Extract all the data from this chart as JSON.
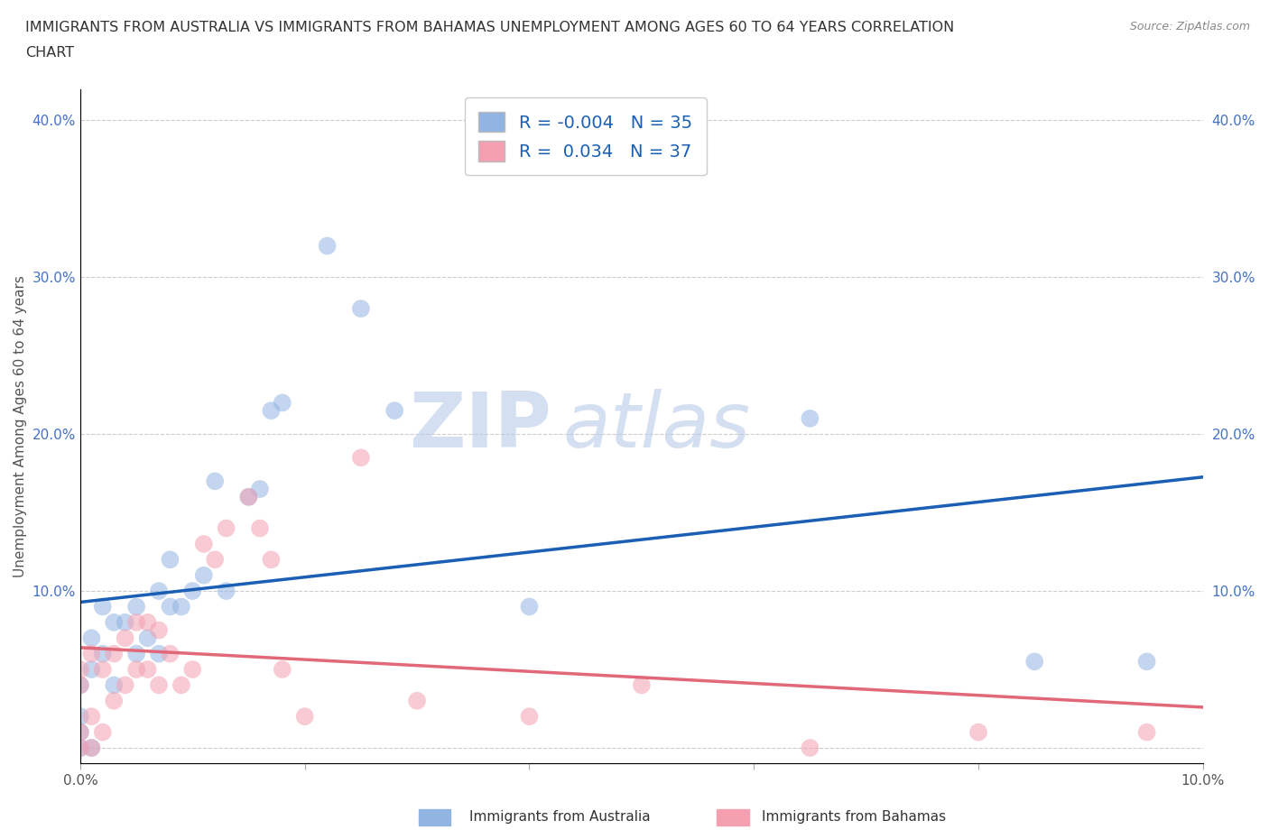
{
  "title_line1": "IMMIGRANTS FROM AUSTRALIA VS IMMIGRANTS FROM BAHAMAS UNEMPLOYMENT AMONG AGES 60 TO 64 YEARS CORRELATION",
  "title_line2": "CHART",
  "source": "Source: ZipAtlas.com",
  "ylabel": "Unemployment Among Ages 60 to 64 years",
  "xlim": [
    0.0,
    0.1
  ],
  "ylim": [
    -0.01,
    0.42
  ],
  "xticks": [
    0.0,
    0.02,
    0.04,
    0.06,
    0.08,
    0.1
  ],
  "xticklabels": [
    "0.0%",
    "",
    "",
    "",
    "",
    "10.0%"
  ],
  "yticks": [
    0.0,
    0.1,
    0.2,
    0.3,
    0.4
  ],
  "yticklabels": [
    "",
    "10.0%",
    "20.0%",
    "30.0%",
    "40.0%"
  ],
  "R_australia": -0.004,
  "N_australia": 35,
  "R_bahamas": 0.034,
  "N_bahamas": 37,
  "australia_color": "#92b4e3",
  "bahamas_color": "#f4a0b0",
  "trendline_australia_color": "#1a5fb4",
  "trendline_bahamas_color": "#e06878",
  "watermark_zip": "ZIP",
  "watermark_atlas": "atlas",
  "watermark_color": "#c8d8f0",
  "legend_label_color": "#1a5fb4",
  "australia_x": [
    0.0,
    0.0,
    0.0,
    0.0,
    0.001,
    0.001,
    0.001,
    0.002,
    0.002,
    0.003,
    0.003,
    0.004,
    0.005,
    0.005,
    0.006,
    0.007,
    0.007,
    0.008,
    0.008,
    0.009,
    0.01,
    0.011,
    0.012,
    0.013,
    0.015,
    0.016,
    0.017,
    0.018,
    0.022,
    0.025,
    0.028,
    0.04,
    0.065,
    0.085,
    0.095
  ],
  "australia_y": [
    0.0,
    0.01,
    0.02,
    0.04,
    0.0,
    0.05,
    0.07,
    0.06,
    0.09,
    0.04,
    0.08,
    0.08,
    0.06,
    0.09,
    0.07,
    0.06,
    0.1,
    0.09,
    0.12,
    0.09,
    0.1,
    0.11,
    0.17,
    0.1,
    0.16,
    0.165,
    0.215,
    0.22,
    0.32,
    0.28,
    0.215,
    0.09,
    0.21,
    0.055,
    0.055
  ],
  "bahamas_x": [
    0.0,
    0.0,
    0.0,
    0.0,
    0.001,
    0.001,
    0.001,
    0.002,
    0.002,
    0.003,
    0.003,
    0.004,
    0.004,
    0.005,
    0.005,
    0.006,
    0.006,
    0.007,
    0.007,
    0.008,
    0.009,
    0.01,
    0.011,
    0.012,
    0.013,
    0.015,
    0.016,
    0.017,
    0.018,
    0.02,
    0.025,
    0.03,
    0.04,
    0.05,
    0.065,
    0.08,
    0.095
  ],
  "bahamas_y": [
    0.0,
    0.01,
    0.04,
    0.05,
    0.0,
    0.02,
    0.06,
    0.01,
    0.05,
    0.03,
    0.06,
    0.04,
    0.07,
    0.05,
    0.08,
    0.05,
    0.08,
    0.04,
    0.075,
    0.06,
    0.04,
    0.05,
    0.13,
    0.12,
    0.14,
    0.16,
    0.14,
    0.12,
    0.05,
    0.02,
    0.185,
    0.03,
    0.02,
    0.04,
    0.0,
    0.01,
    0.01
  ]
}
